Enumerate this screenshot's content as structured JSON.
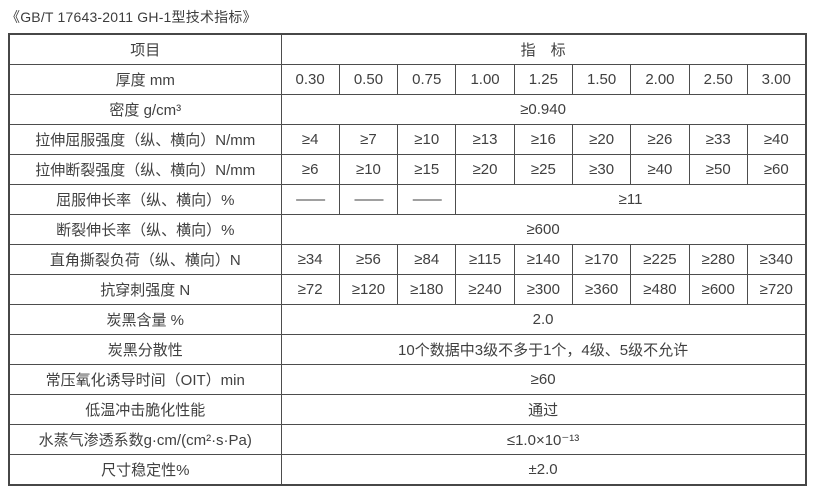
{
  "page": {
    "title": "《GB/T 17643-2011 GH-1型技术指标》"
  },
  "colors": {
    "border": "#4d4d4d",
    "text": "#404040",
    "background": "#ffffff"
  },
  "table": {
    "header": {
      "item_label": "项目",
      "indicator_label": "指　标"
    },
    "rows": [
      {
        "label": "厚度 mm",
        "values": [
          "0.30",
          "0.50",
          "0.75",
          "1.00",
          "1.25",
          "1.50",
          "2.00",
          "2.50",
          "3.00"
        ]
      },
      {
        "label": "密度 g/cm³",
        "value": "≥0.940"
      },
      {
        "label": "拉伸屈服强度（纵、横向）N/mm",
        "values": [
          "≥4",
          "≥7",
          "≥10",
          "≥13",
          "≥16",
          "≥20",
          "≥26",
          "≥33",
          "≥40"
        ]
      },
      {
        "label": "拉伸断裂强度（纵、横向）N/mm",
        "values": [
          "≥6",
          "≥10",
          "≥15",
          "≥20",
          "≥25",
          "≥30",
          "≥40",
          "≥50",
          "≥60"
        ]
      },
      {
        "label": "屈服伸长率（纵、横向）%",
        "values": [
          "——",
          "——",
          "——"
        ],
        "value": "≥11"
      },
      {
        "label": "断裂伸长率（纵、横向）%",
        "value": "≥600"
      },
      {
        "label": "直角撕裂负荷（纵、横向）N",
        "values": [
          "≥34",
          "≥56",
          "≥84",
          "≥115",
          "≥140",
          "≥170",
          "≥225",
          "≥280",
          "≥340"
        ]
      },
      {
        "label": "抗穿刺强度 N",
        "values": [
          "≥72",
          "≥120",
          "≥180",
          "≥240",
          "≥300",
          "≥360",
          "≥480",
          "≥600",
          "≥720"
        ]
      },
      {
        "label": "炭黑含量 %",
        "value": "2.0"
      },
      {
        "label": "炭黑分散性",
        "value": "10个数据中3级不多于1个，4级、5级不允许"
      },
      {
        "label": "常压氧化诱导时间（OIT）min",
        "value": "≥60"
      },
      {
        "label": "低温冲击脆化性能",
        "value": "通过"
      },
      {
        "label": "水蒸气渗透系数g·cm/(cm²·s·Pa)",
        "value": "≤1.0×10⁻¹³"
      },
      {
        "label": "尺寸稳定性%",
        "value": "±2.0"
      }
    ]
  }
}
